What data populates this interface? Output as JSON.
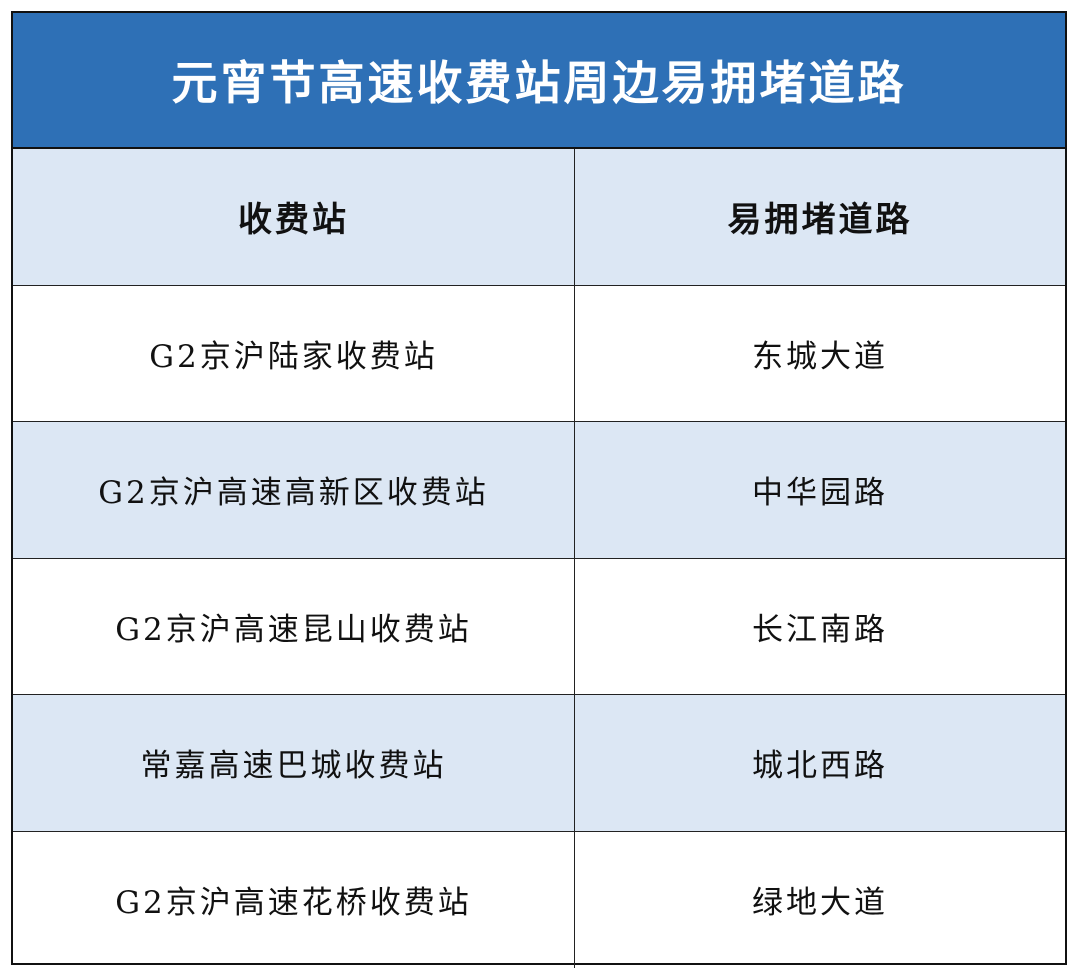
{
  "title": "元宵节高速收费站周边易拥堵道路",
  "colors": {
    "title_bg": "#2e70b6",
    "alt_row_bg": "#dce7f4"
  },
  "headers": [
    "收费站",
    "易拥堵道路"
  ],
  "rows": [
    [
      "G2京沪陆家收费站",
      "东城大道"
    ],
    [
      "G2京沪高速高新区收费站",
      "中华园路"
    ],
    [
      "G2京沪高速昆山收费站",
      "长江南路"
    ],
    [
      "常嘉高速巴城收费站",
      "城北西路"
    ],
    [
      "G2京沪高速花桥收费站",
      "绿地大道"
    ]
  ]
}
